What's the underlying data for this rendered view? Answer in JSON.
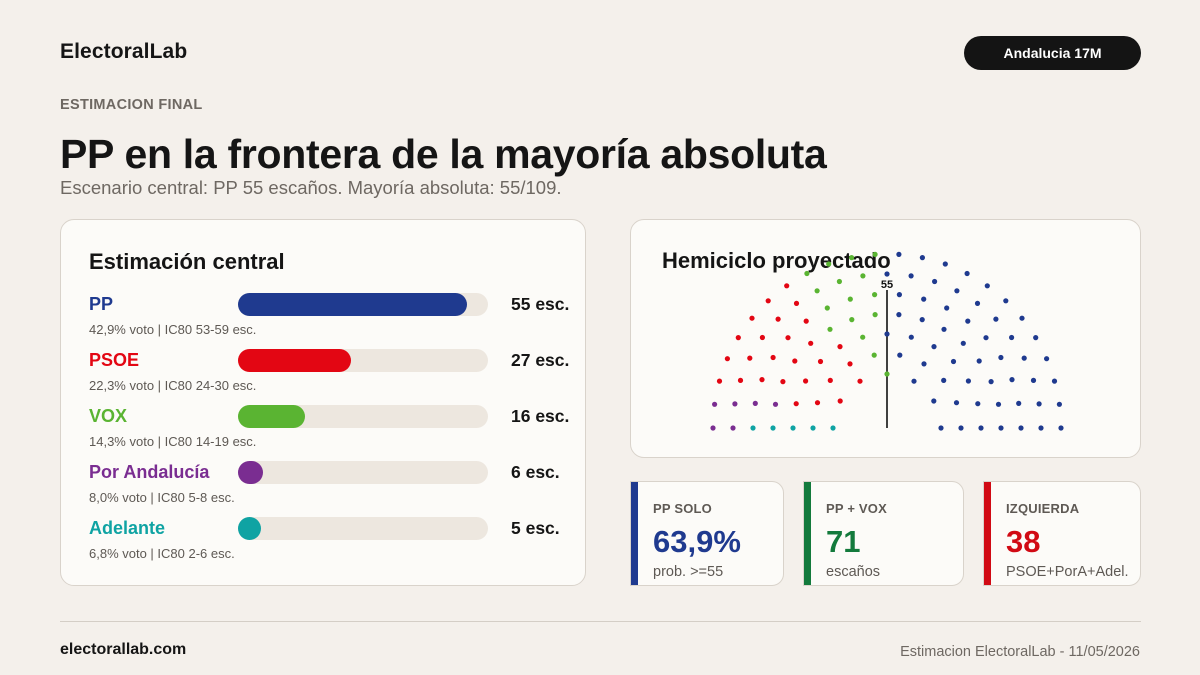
{
  "header": {
    "brand": "ElectoralLab",
    "tag": "Andalucia 17M",
    "kicker": "ESTIMACION FINAL",
    "headline": "PP en la frontera de la mayoría absoluta",
    "subhead": "Escenario central: PP 55 escaños. Mayoría absoluta: 55/109."
  },
  "estimate": {
    "title": "Estimación central",
    "max_seats": 60,
    "parties": [
      {
        "name": "PP",
        "seats": 55,
        "seats_label": "55 esc.",
        "meta": "42,9% voto | IC80 53-59 esc.",
        "color": "#1f3a8f"
      },
      {
        "name": "PSOE",
        "seats": 27,
        "seats_label": "27 esc.",
        "meta": "22,3% voto | IC80 24-30 esc.",
        "color": "#e30613"
      },
      {
        "name": "VOX",
        "seats": 16,
        "seats_label": "16 esc.",
        "meta": "14,3% voto | IC80 14-19 esc.",
        "color": "#5ab432"
      },
      {
        "name": "Por Andalucía",
        "seats": 6,
        "seats_label": "6 esc.",
        "meta": "8,0% voto | IC80 5-8 esc.",
        "color": "#7a2d91"
      },
      {
        "name": "Adelante",
        "seats": 5,
        "seats_label": "5 esc.",
        "meta": "6,8% voto | IC80 2-6 esc.",
        "color": "#0fa3a3"
      }
    ]
  },
  "hemicycle": {
    "title": "Hemiciclo proyectado",
    "majority_label": "55",
    "total_seats": 109,
    "left_order": [
      "Adelante",
      "Por Andalucía",
      "PSOE"
    ],
    "right_order": [
      "VOX",
      "PP"
    ]
  },
  "kpis": [
    {
      "label": "PP SOLO",
      "value": "63,9%",
      "sub": "prob. >=55",
      "accent": "#1f3a8f",
      "value_color": "#1f3a8f"
    },
    {
      "label": "PP + VOX",
      "value": "71",
      "sub": "escaños",
      "accent": "#137a3c",
      "value_color": "#137a3c"
    },
    {
      "label": "IZQUIERDA",
      "value": "38",
      "sub": "PSOE+PorA+Adel.",
      "accent": "#d10a14",
      "value_color": "#d10a14"
    }
  ],
  "footer": {
    "site": "electorallab.com",
    "note": "Estimacion ElectoralLab - 11/05/2026"
  }
}
